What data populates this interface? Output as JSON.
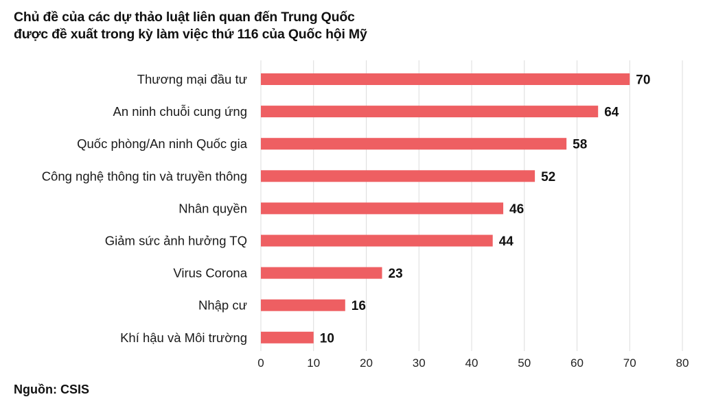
{
  "title_lines": [
    "Chủ đề của các dự thảo luật liên quan đến Trung Quốc",
    "được đề xuất trong kỳ làm việc thứ 116 của Quốc hội Mỹ"
  ],
  "source": "Nguồn: CSIS",
  "colors": {
    "bar": "#EE5F62"
  },
  "chart_data": {
    "type": "bar",
    "orientation": "horizontal",
    "title": "Chủ đề của các dự thảo luật liên quan đến Trung Quốc được đề xuất trong kỳ làm việc thứ 116 của Quốc hội Mỹ",
    "categories": [
      "Thương mại đầu tư",
      "An ninh chuỗi cung ứng",
      "Quốc phòng/An ninh Quốc gia",
      "Công nghệ thông tin và truyền thông",
      "Nhân quyền",
      "Giảm sức ảnh hưởng TQ",
      "Virus Corona",
      "Nhập cư",
      "Khí hậu và Môi trường"
    ],
    "values": [
      70,
      64,
      58,
      52,
      46,
      44,
      23,
      16,
      10
    ],
    "xlabel": "",
    "ylabel": "",
    "xlim": [
      0,
      80
    ],
    "xticks": [
      0,
      10,
      20,
      30,
      40,
      50,
      60,
      70,
      80
    ],
    "grid": true,
    "data_labels": true,
    "legend": "none",
    "source": "CSIS"
  }
}
